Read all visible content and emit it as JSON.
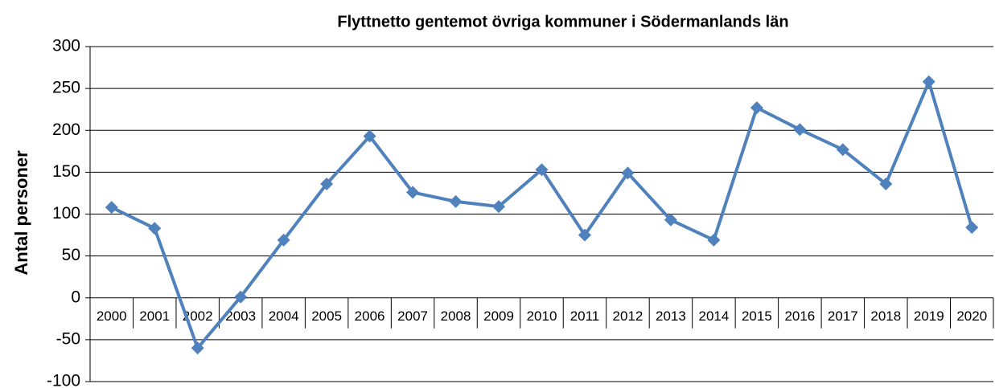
{
  "chart_data": {
    "type": "line",
    "title": "Flyttnetto gentemot övriga kommuner i Södermanlands län",
    "y_label": "Antal personer",
    "categories": [
      "2000",
      "2001",
      "2002",
      "2003",
      "2004",
      "2005",
      "2006",
      "2007",
      "2008",
      "2009",
      "2010",
      "2011",
      "2012",
      "2013",
      "2014",
      "2015",
      "2016",
      "2017",
      "2018",
      "2019",
      "2020"
    ],
    "series": [
      {
        "name": "Flyttnetto",
        "color": "#4f81bd",
        "values": [
          108,
          83,
          -60,
          1,
          69,
          136,
          193,
          126,
          115,
          109,
          153,
          75,
          149,
          93,
          69,
          227,
          201,
          177,
          136,
          258,
          84
        ]
      }
    ],
    "ylim": [
      -100,
      300
    ],
    "yticks": [
      -100,
      -50,
      0,
      50,
      100,
      150,
      200,
      250,
      300
    ],
    "grid": true
  }
}
